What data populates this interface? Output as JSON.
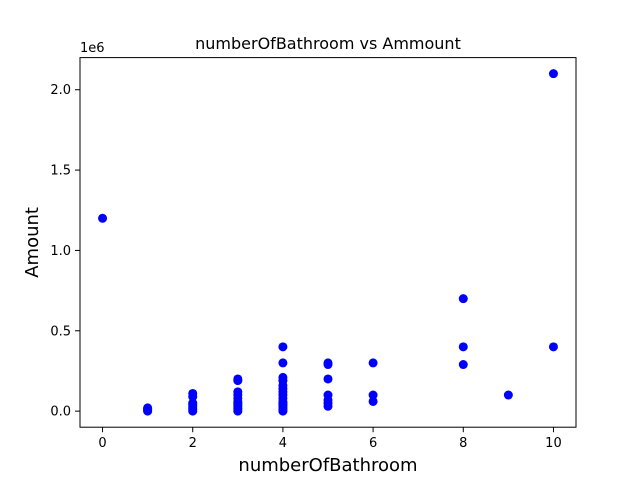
{
  "chart_data": {
    "type": "scatter",
    "title": "numberOfBathroom vs Ammount",
    "xlabel": "numberOfBathroom",
    "ylabel": "Amount",
    "y_offset_label": "1e6",
    "xlim": [
      -0.5,
      10.5
    ],
    "ylim": [
      -0.1,
      2.2
    ],
    "x_ticks": [
      0,
      2,
      4,
      6,
      8,
      10
    ],
    "x_tick_labels": [
      "0",
      "2",
      "4",
      "6",
      "8",
      "10"
    ],
    "y_ticks": [
      0.0,
      0.5,
      1.0,
      1.5,
      2.0
    ],
    "y_tick_labels": [
      "0.0",
      "0.5",
      "1.0",
      "1.5",
      "2.0"
    ],
    "grid": false,
    "marker_color": "#0000ff",
    "series": [
      {
        "points": [
          [
            0,
            1.2
          ],
          [
            1,
            0.0
          ],
          [
            1,
            0.005
          ],
          [
            1,
            0.01
          ],
          [
            1,
            0.015
          ],
          [
            1,
            0.02
          ],
          [
            2,
            0.0
          ],
          [
            2,
            0.01
          ],
          [
            2,
            0.02
          ],
          [
            2,
            0.03
          ],
          [
            2,
            0.04
          ],
          [
            2,
            0.05
          ],
          [
            2,
            0.09
          ],
          [
            2,
            0.11
          ],
          [
            3,
            0.0
          ],
          [
            3,
            0.01
          ],
          [
            3,
            0.02
          ],
          [
            3,
            0.03
          ],
          [
            3,
            0.04
          ],
          [
            3,
            0.05
          ],
          [
            3,
            0.06
          ],
          [
            3,
            0.08
          ],
          [
            3,
            0.1
          ],
          [
            3,
            0.12
          ],
          [
            3,
            0.19
          ],
          [
            3,
            0.2
          ],
          [
            4,
            0.0
          ],
          [
            4,
            0.01
          ],
          [
            4,
            0.02
          ],
          [
            4,
            0.03
          ],
          [
            4,
            0.04
          ],
          [
            4,
            0.05
          ],
          [
            4,
            0.06
          ],
          [
            4,
            0.08
          ],
          [
            4,
            0.1
          ],
          [
            4,
            0.12
          ],
          [
            4,
            0.14
          ],
          [
            4,
            0.16
          ],
          [
            4,
            0.19
          ],
          [
            4,
            0.21
          ],
          [
            4,
            0.3
          ],
          [
            4,
            0.4
          ],
          [
            5,
            0.03
          ],
          [
            5,
            0.05
          ],
          [
            5,
            0.07
          ],
          [
            5,
            0.1
          ],
          [
            5,
            0.2
          ],
          [
            5,
            0.29
          ],
          [
            5,
            0.3
          ],
          [
            6,
            0.06
          ],
          [
            6,
            0.1
          ],
          [
            6,
            0.3
          ],
          [
            8,
            0.29
          ],
          [
            8,
            0.4
          ],
          [
            8,
            0.7
          ],
          [
            9,
            0.1
          ],
          [
            10,
            0.4
          ],
          [
            10,
            2.1
          ]
        ]
      }
    ]
  }
}
